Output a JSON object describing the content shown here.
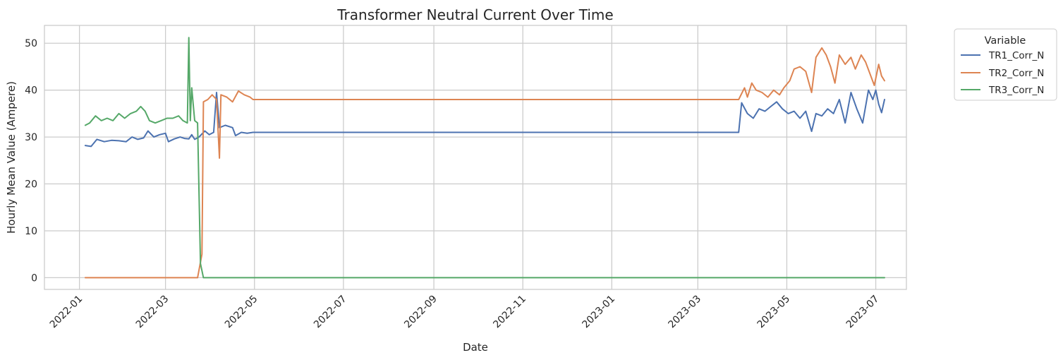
{
  "chart_data": {
    "type": "line",
    "title": "Transformer Neutral Current Over Time",
    "xlabel": "Date",
    "ylabel": "Hourly Mean Value (Ampere)",
    "xlim": [
      "2021-12-08",
      "2023-07-22"
    ],
    "ylim": [
      -2.5,
      53.8
    ],
    "x_ticks": [
      "2022-01",
      "2022-03",
      "2022-05",
      "2022-07",
      "2022-09",
      "2022-11",
      "2023-01",
      "2023-03",
      "2023-05",
      "2023-07"
    ],
    "y_ticks": [
      0,
      10,
      20,
      30,
      40,
      50
    ],
    "grid": true,
    "legend": {
      "title": "Variable",
      "placement": "outside-top-right"
    },
    "series": [
      {
        "name": "TR1_Corr_N",
        "color": "#4c72b0",
        "points": [
          [
            "2022-01-05",
            28.2
          ],
          [
            "2022-01-09",
            28.0
          ],
          [
            "2022-01-13",
            29.5
          ],
          [
            "2022-01-18",
            29.0
          ],
          [
            "2022-01-23",
            29.3
          ],
          [
            "2022-01-28",
            29.2
          ],
          [
            "2022-02-02",
            29.0
          ],
          [
            "2022-02-06",
            30.0
          ],
          [
            "2022-02-10",
            29.5
          ],
          [
            "2022-02-14",
            29.8
          ],
          [
            "2022-02-17",
            31.3
          ],
          [
            "2022-02-21",
            30.0
          ],
          [
            "2022-02-25",
            30.5
          ],
          [
            "2022-03-01",
            30.8
          ],
          [
            "2022-03-03",
            29.0
          ],
          [
            "2022-03-07",
            29.6
          ],
          [
            "2022-03-11",
            30.0
          ],
          [
            "2022-03-14",
            29.7
          ],
          [
            "2022-03-17",
            29.6
          ],
          [
            "2022-03-19",
            30.5
          ],
          [
            "2022-03-21",
            29.5
          ],
          [
            "2022-03-24",
            30.0
          ],
          [
            "2022-03-28",
            31.3
          ],
          [
            "2022-03-31",
            30.5
          ],
          [
            "2022-04-03",
            31.0
          ],
          [
            "2022-04-05",
            39.5
          ],
          [
            "2022-04-07",
            32.0
          ],
          [
            "2022-04-11",
            32.5
          ],
          [
            "2022-04-16",
            32.0
          ],
          [
            "2022-04-18",
            30.3
          ],
          [
            "2022-04-22",
            31.0
          ],
          [
            "2022-04-26",
            30.8
          ],
          [
            "2022-04-30",
            31.0
          ],
          [
            "2023-03-29",
            31.0
          ],
          [
            "2023-03-31",
            37.3
          ],
          [
            "2023-04-04",
            35.0
          ],
          [
            "2023-04-08",
            34.0
          ],
          [
            "2023-04-12",
            36.0
          ],
          [
            "2023-04-16",
            35.5
          ],
          [
            "2023-04-20",
            36.5
          ],
          [
            "2023-04-24",
            37.5
          ],
          [
            "2023-04-28",
            36.0
          ],
          [
            "2023-05-02",
            35.0
          ],
          [
            "2023-05-06",
            35.5
          ],
          [
            "2023-05-10",
            34.0
          ],
          [
            "2023-05-14",
            35.5
          ],
          [
            "2023-05-18",
            31.2
          ],
          [
            "2023-05-21",
            35.0
          ],
          [
            "2023-05-25",
            34.5
          ],
          [
            "2023-05-29",
            36.0
          ],
          [
            "2023-06-02",
            35.0
          ],
          [
            "2023-06-06",
            38.0
          ],
          [
            "2023-06-10",
            33.0
          ],
          [
            "2023-06-14",
            39.5
          ],
          [
            "2023-06-18",
            36.0
          ],
          [
            "2023-06-22",
            33.0
          ],
          [
            "2023-06-26",
            40.0
          ],
          [
            "2023-06-29",
            38.0
          ],
          [
            "2023-07-01",
            40.0
          ],
          [
            "2023-07-03",
            37.0
          ],
          [
            "2023-07-05",
            35.2
          ],
          [
            "2023-07-07",
            38.0
          ]
        ]
      },
      {
        "name": "TR2_Corr_N",
        "color": "#dd8452",
        "points": [
          [
            "2022-01-05",
            0
          ],
          [
            "2022-03-23",
            0
          ],
          [
            "2022-03-26",
            5.0
          ],
          [
            "2022-03-27",
            37.5
          ],
          [
            "2022-03-30",
            38.0
          ],
          [
            "2022-04-02",
            39.0
          ],
          [
            "2022-04-05",
            38.0
          ],
          [
            "2022-04-07",
            25.5
          ],
          [
            "2022-04-08",
            39.0
          ],
          [
            "2022-04-12",
            38.5
          ],
          [
            "2022-04-16",
            37.5
          ],
          [
            "2022-04-20",
            39.8
          ],
          [
            "2022-04-24",
            39.0
          ],
          [
            "2022-04-28",
            38.5
          ],
          [
            "2022-04-30",
            38.0
          ],
          [
            "2023-03-29",
            38.0
          ],
          [
            "2023-04-02",
            40.5
          ],
          [
            "2023-04-04",
            38.5
          ],
          [
            "2023-04-07",
            41.5
          ],
          [
            "2023-04-10",
            40.0
          ],
          [
            "2023-04-14",
            39.5
          ],
          [
            "2023-04-18",
            38.5
          ],
          [
            "2023-04-22",
            40.0
          ],
          [
            "2023-04-26",
            39.0
          ],
          [
            "2023-04-29",
            40.5
          ],
          [
            "2023-05-03",
            42.0
          ],
          [
            "2023-05-06",
            44.5
          ],
          [
            "2023-05-10",
            45.0
          ],
          [
            "2023-05-14",
            44.0
          ],
          [
            "2023-05-18",
            39.5
          ],
          [
            "2023-05-21",
            47.0
          ],
          [
            "2023-05-25",
            49.0
          ],
          [
            "2023-05-28",
            47.5
          ],
          [
            "2023-05-31",
            45.0
          ],
          [
            "2023-06-03",
            41.5
          ],
          [
            "2023-06-06",
            47.5
          ],
          [
            "2023-06-10",
            45.5
          ],
          [
            "2023-06-14",
            47.0
          ],
          [
            "2023-06-17",
            44.5
          ],
          [
            "2023-06-21",
            47.5
          ],
          [
            "2023-06-24",
            46.0
          ],
          [
            "2023-06-27",
            43.5
          ],
          [
            "2023-06-30",
            41.0
          ],
          [
            "2023-07-03",
            45.5
          ],
          [
            "2023-07-05",
            43.0
          ],
          [
            "2023-07-07",
            42.0
          ]
        ]
      },
      {
        "name": "TR3_Corr_N",
        "color": "#55a868",
        "points": [
          [
            "2022-01-05",
            32.5
          ],
          [
            "2022-01-08",
            33.0
          ],
          [
            "2022-01-12",
            34.5
          ],
          [
            "2022-01-16",
            33.5
          ],
          [
            "2022-01-20",
            34.0
          ],
          [
            "2022-01-24",
            33.5
          ],
          [
            "2022-01-28",
            35.0
          ],
          [
            "2022-02-01",
            34.0
          ],
          [
            "2022-02-05",
            35.0
          ],
          [
            "2022-02-09",
            35.5
          ],
          [
            "2022-02-12",
            36.5
          ],
          [
            "2022-02-15",
            35.5
          ],
          [
            "2022-02-18",
            33.5
          ],
          [
            "2022-02-22",
            33.0
          ],
          [
            "2022-02-26",
            33.5
          ],
          [
            "2022-03-02",
            34.0
          ],
          [
            "2022-03-06",
            34.0
          ],
          [
            "2022-03-10",
            34.5
          ],
          [
            "2022-03-13",
            33.5
          ],
          [
            "2022-03-16",
            33.0
          ],
          [
            "2022-03-17",
            51.2
          ],
          [
            "2022-03-18",
            33.5
          ],
          [
            "2022-03-19",
            40.5
          ],
          [
            "2022-03-21",
            33.5
          ],
          [
            "2022-03-23",
            33.0
          ],
          [
            "2022-03-25",
            3.0
          ],
          [
            "2022-03-27",
            0
          ],
          [
            "2023-07-07",
            0
          ]
        ]
      }
    ]
  }
}
